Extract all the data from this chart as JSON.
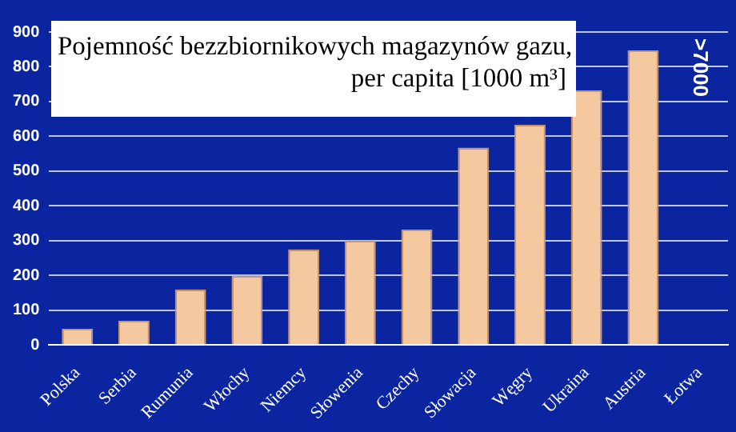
{
  "chart_data": {
    "type": "bar",
    "title": "Pojemność bezzbiornikowych magazynów gazu, per capita [1000 m³]",
    "categories": [
      "Polska",
      "Serbia",
      "Rumunia",
      "Włochy",
      "Niemcy",
      "Słowenia",
      "Czechy",
      "Słowacja",
      "Węgry",
      "Ukraina",
      "Austria",
      "Łotwa"
    ],
    "values": [
      47,
      70,
      160,
      200,
      275,
      300,
      332,
      568,
      634,
      732,
      847,
      null
    ],
    "color": "#f5c9a0",
    "ylim": [
      0,
      900
    ],
    "yticks": [
      0,
      100,
      200,
      300,
      400,
      500,
      600,
      700,
      800,
      900
    ],
    "grid": "y",
    "legend": false,
    "annotations": [
      ">7000"
    ]
  }
}
